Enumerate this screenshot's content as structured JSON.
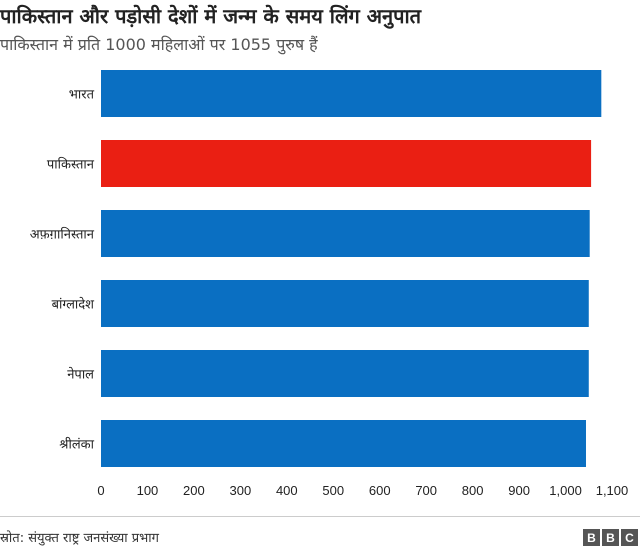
{
  "chart_data": {
    "type": "bar",
    "orientation": "horizontal",
    "title": "पाकिस्तान और पड़ोसी देशों में जन्म के समय लिंग अनुपात",
    "subtitle": "पाकिस्तान में प्रति 1000 महिलाओं पर 1055 पुरुष हैं",
    "categories": [
      "भारत",
      "पाकिस्तान",
      "अफ़ग़ानिस्तान",
      "बांग्लादेश",
      "नेपाल",
      "श्रीलंका"
    ],
    "values": [
      1077,
      1055,
      1052,
      1050,
      1050,
      1044
    ],
    "colors": [
      "#0a6fc2",
      "#ea1f13",
      "#0a6fc2",
      "#0a6fc2",
      "#0a6fc2",
      "#0a6fc2"
    ],
    "xlim": [
      0,
      1100
    ],
    "xticks": [
      "0",
      "100",
      "200",
      "300",
      "400",
      "500",
      "600",
      "700",
      "800",
      "900",
      "1,000",
      "1,100"
    ],
    "grid": false
  },
  "footer": {
    "source": "स्रोत: संयुक्त राष्ट्र जनसंख्या प्रभाग",
    "logo": [
      "B",
      "B",
      "C"
    ]
  }
}
